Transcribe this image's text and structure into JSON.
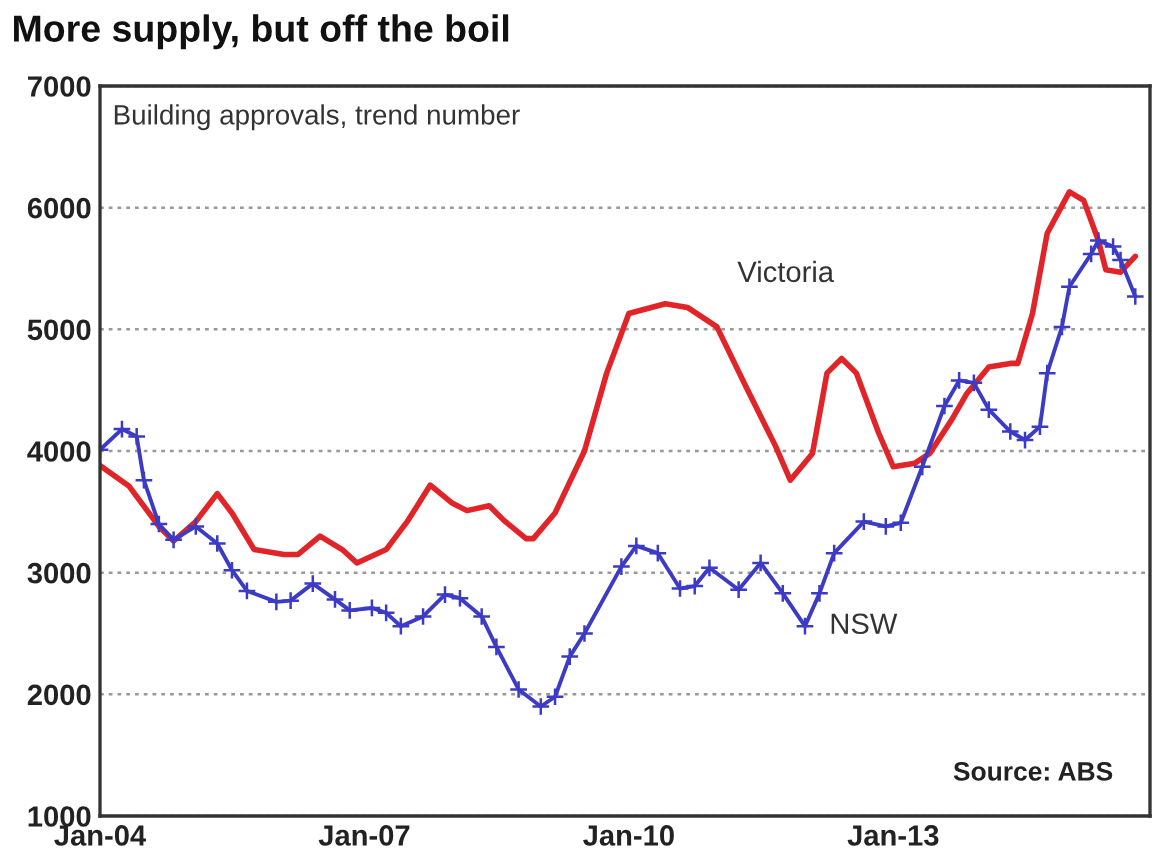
{
  "chart_data": {
    "type": "line",
    "title": "More supply, but off the boil",
    "subtitle": "Building approvals, trend number",
    "annotations": [
      "Source: ABS"
    ],
    "xlim": [
      "2004-01",
      "2015-12"
    ],
    "xticks": [
      {
        "value": "2004-01",
        "label": "Jan-04"
      },
      {
        "value": "2007-01",
        "label": "Jan-07"
      },
      {
        "value": "2010-01",
        "label": "Jan-10"
      },
      {
        "value": "2013-01",
        "label": "Jan-13"
      }
    ],
    "ylim": [
      1000,
      7000
    ],
    "yticks": [
      1000,
      2000,
      3000,
      4000,
      5000,
      6000,
      7000
    ],
    "grid": "y",
    "series": [
      {
        "name": "Victoria",
        "color": "#e02428",
        "marker": "none",
        "x": [
          "2004-01",
          "2004-05",
          "2004-09",
          "2004-11",
          "2005-02",
          "2005-05",
          "2005-07",
          "2005-10",
          "2006-02",
          "2006-04",
          "2006-07",
          "2006-10",
          "2006-12",
          "2007-04",
          "2007-07",
          "2007-10",
          "2008-01",
          "2008-03",
          "2008-06",
          "2008-08",
          "2008-11",
          "2008-12",
          "2009-03",
          "2009-07",
          "2009-10",
          "2010-01",
          "2010-06",
          "2010-09",
          "2011-01",
          "2011-05",
          "2011-09",
          "2011-11",
          "2012-02",
          "2012-04",
          "2012-06",
          "2012-08",
          "2012-11",
          "2013-01",
          "2013-04",
          "2013-06",
          "2013-09",
          "2013-11",
          "2014-02",
          "2014-05",
          "2014-06",
          "2014-08",
          "2014-10",
          "2015-01",
          "2015-03",
          "2015-05",
          "2015-06",
          "2015-08",
          "2015-10"
        ],
        "values": [
          3880,
          3710,
          3380,
          3260,
          3420,
          3650,
          3490,
          3190,
          3150,
          3150,
          3300,
          3190,
          3080,
          3190,
          3430,
          3720,
          3570,
          3510,
          3550,
          3430,
          3280,
          3280,
          3490,
          4000,
          4640,
          5130,
          5210,
          5180,
          5020,
          4530,
          4040,
          3760,
          3980,
          4640,
          4760,
          4640,
          4150,
          3870,
          3900,
          3980,
          4260,
          4470,
          4690,
          4720,
          4720,
          5130,
          5790,
          6130,
          6060,
          5730,
          5490,
          5470,
          5600
        ]
      },
      {
        "name": "NSW",
        "color": "#3b3bc6",
        "marker": "cross",
        "x": [
          "2004-01",
          "2004-04",
          "2004-06",
          "2004-07",
          "2004-09",
          "2004-11",
          "2005-02",
          "2005-05",
          "2005-07",
          "2005-09",
          "2006-01",
          "2006-03",
          "2006-06",
          "2006-09",
          "2006-11",
          "2007-02",
          "2007-04",
          "2007-06",
          "2007-09",
          "2007-12",
          "2008-02",
          "2008-05",
          "2008-07",
          "2008-10",
          "2009-01",
          "2009-03",
          "2009-05",
          "2009-07",
          "2009-12",
          "2010-02",
          "2010-05",
          "2010-08",
          "2010-10",
          "2010-12",
          "2011-04",
          "2011-07",
          "2011-10",
          "2012-01",
          "2012-03",
          "2012-05",
          "2012-09",
          "2012-12",
          "2013-02",
          "2013-05",
          "2013-08",
          "2013-10",
          "2013-12",
          "2014-02",
          "2014-05",
          "2014-07",
          "2014-09",
          "2014-10",
          "2014-12",
          "2015-01",
          "2015-04",
          "2015-05",
          "2015-07",
          "2015-08",
          "2015-10"
        ],
        "values": [
          4010,
          4180,
          4120,
          3760,
          3400,
          3270,
          3380,
          3240,
          3020,
          2850,
          2760,
          2770,
          2910,
          2780,
          2690,
          2710,
          2670,
          2560,
          2640,
          2820,
          2790,
          2640,
          2390,
          2040,
          1900,
          1980,
          2310,
          2500,
          3050,
          3220,
          3160,
          2870,
          2890,
          3040,
          2860,
          3080,
          2830,
          2560,
          2830,
          3160,
          3420,
          3380,
          3410,
          3870,
          4370,
          4580,
          4560,
          4340,
          4160,
          4090,
          4200,
          4640,
          5020,
          5350,
          5620,
          5730,
          5680,
          5570,
          5270
        ]
      }
    ]
  }
}
